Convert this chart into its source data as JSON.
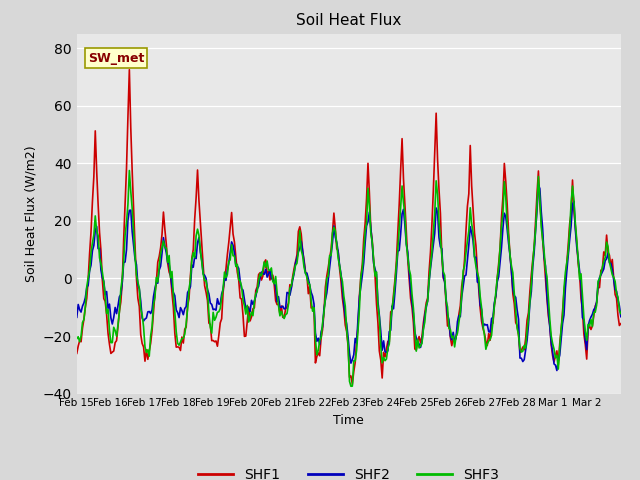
{
  "title": "Soil Heat Flux",
  "ylabel": "Soil Heat Flux (W/m2)",
  "xlabel": "Time",
  "ylim": [
    -40,
    85
  ],
  "yticks": [
    -40,
    -20,
    0,
    20,
    40,
    60,
    80
  ],
  "outer_bg": "#d8d8d8",
  "plot_bg": "#e8e8e8",
  "inner_band_color": "#e0e0e0",
  "shf1_color": "#cc0000",
  "shf2_color": "#0000bb",
  "shf3_color": "#00bb00",
  "legend_label": "SW_met",
  "legend_bg": "#ffffcc",
  "legend_border": "#999900",
  "line_width": 1.2,
  "tick_labels": [
    "Feb 15",
    "Feb 16",
    "Feb 17",
    "Feb 18",
    "Feb 19",
    "Feb 20",
    "Feb 21",
    "Feb 22",
    "Feb 23",
    "Feb 24",
    "Feb 25",
    "Feb 26",
    "Feb 27",
    "Feb 28",
    "Mar 1",
    "Mar 2"
  ],
  "n_per_day": 24,
  "n_days": 16
}
